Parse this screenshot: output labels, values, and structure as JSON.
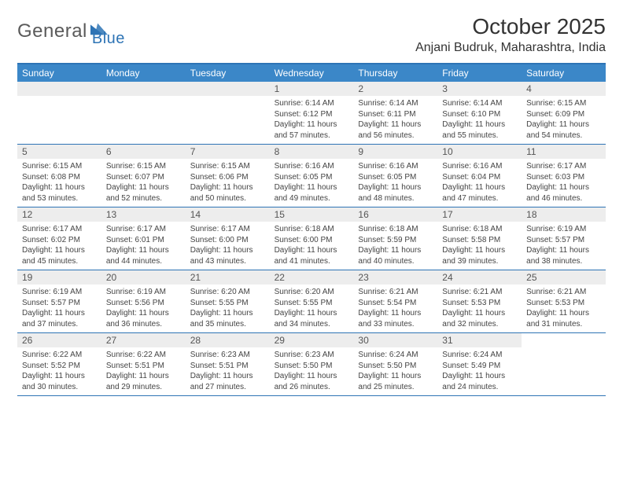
{
  "logo": {
    "part1": "General",
    "part2": "Blue"
  },
  "title": "October 2025",
  "location": "Anjani Budruk, Maharashtra, India",
  "colors": {
    "header_bg": "#3b87c8",
    "header_rule": "#2e74b5",
    "daynum_bg": "#ededed",
    "text": "#333333",
    "logo_gray": "#5a5a5a",
    "logo_blue": "#2e74b5"
  },
  "days_of_week": [
    "Sunday",
    "Monday",
    "Tuesday",
    "Wednesday",
    "Thursday",
    "Friday",
    "Saturday"
  ],
  "weeks": [
    [
      {
        "n": "",
        "sr": "",
        "ss": "",
        "dl1": "",
        "dl2": "",
        "blank": true
      },
      {
        "n": "",
        "sr": "",
        "ss": "",
        "dl1": "",
        "dl2": "",
        "blank": true
      },
      {
        "n": "",
        "sr": "",
        "ss": "",
        "dl1": "",
        "dl2": "",
        "blank": true
      },
      {
        "n": "1",
        "sr": "Sunrise: 6:14 AM",
        "ss": "Sunset: 6:12 PM",
        "dl1": "Daylight: 11 hours",
        "dl2": "and 57 minutes."
      },
      {
        "n": "2",
        "sr": "Sunrise: 6:14 AM",
        "ss": "Sunset: 6:11 PM",
        "dl1": "Daylight: 11 hours",
        "dl2": "and 56 minutes."
      },
      {
        "n": "3",
        "sr": "Sunrise: 6:14 AM",
        "ss": "Sunset: 6:10 PM",
        "dl1": "Daylight: 11 hours",
        "dl2": "and 55 minutes."
      },
      {
        "n": "4",
        "sr": "Sunrise: 6:15 AM",
        "ss": "Sunset: 6:09 PM",
        "dl1": "Daylight: 11 hours",
        "dl2": "and 54 minutes."
      }
    ],
    [
      {
        "n": "5",
        "sr": "Sunrise: 6:15 AM",
        "ss": "Sunset: 6:08 PM",
        "dl1": "Daylight: 11 hours",
        "dl2": "and 53 minutes."
      },
      {
        "n": "6",
        "sr": "Sunrise: 6:15 AM",
        "ss": "Sunset: 6:07 PM",
        "dl1": "Daylight: 11 hours",
        "dl2": "and 52 minutes."
      },
      {
        "n": "7",
        "sr": "Sunrise: 6:15 AM",
        "ss": "Sunset: 6:06 PM",
        "dl1": "Daylight: 11 hours",
        "dl2": "and 50 minutes."
      },
      {
        "n": "8",
        "sr": "Sunrise: 6:16 AM",
        "ss": "Sunset: 6:05 PM",
        "dl1": "Daylight: 11 hours",
        "dl2": "and 49 minutes."
      },
      {
        "n": "9",
        "sr": "Sunrise: 6:16 AM",
        "ss": "Sunset: 6:05 PM",
        "dl1": "Daylight: 11 hours",
        "dl2": "and 48 minutes."
      },
      {
        "n": "10",
        "sr": "Sunrise: 6:16 AM",
        "ss": "Sunset: 6:04 PM",
        "dl1": "Daylight: 11 hours",
        "dl2": "and 47 minutes."
      },
      {
        "n": "11",
        "sr": "Sunrise: 6:17 AM",
        "ss": "Sunset: 6:03 PM",
        "dl1": "Daylight: 11 hours",
        "dl2": "and 46 minutes."
      }
    ],
    [
      {
        "n": "12",
        "sr": "Sunrise: 6:17 AM",
        "ss": "Sunset: 6:02 PM",
        "dl1": "Daylight: 11 hours",
        "dl2": "and 45 minutes."
      },
      {
        "n": "13",
        "sr": "Sunrise: 6:17 AM",
        "ss": "Sunset: 6:01 PM",
        "dl1": "Daylight: 11 hours",
        "dl2": "and 44 minutes."
      },
      {
        "n": "14",
        "sr": "Sunrise: 6:17 AM",
        "ss": "Sunset: 6:00 PM",
        "dl1": "Daylight: 11 hours",
        "dl2": "and 43 minutes."
      },
      {
        "n": "15",
        "sr": "Sunrise: 6:18 AM",
        "ss": "Sunset: 6:00 PM",
        "dl1": "Daylight: 11 hours",
        "dl2": "and 41 minutes."
      },
      {
        "n": "16",
        "sr": "Sunrise: 6:18 AM",
        "ss": "Sunset: 5:59 PM",
        "dl1": "Daylight: 11 hours",
        "dl2": "and 40 minutes."
      },
      {
        "n": "17",
        "sr": "Sunrise: 6:18 AM",
        "ss": "Sunset: 5:58 PM",
        "dl1": "Daylight: 11 hours",
        "dl2": "and 39 minutes."
      },
      {
        "n": "18",
        "sr": "Sunrise: 6:19 AM",
        "ss": "Sunset: 5:57 PM",
        "dl1": "Daylight: 11 hours",
        "dl2": "and 38 minutes."
      }
    ],
    [
      {
        "n": "19",
        "sr": "Sunrise: 6:19 AM",
        "ss": "Sunset: 5:57 PM",
        "dl1": "Daylight: 11 hours",
        "dl2": "and 37 minutes."
      },
      {
        "n": "20",
        "sr": "Sunrise: 6:19 AM",
        "ss": "Sunset: 5:56 PM",
        "dl1": "Daylight: 11 hours",
        "dl2": "and 36 minutes."
      },
      {
        "n": "21",
        "sr": "Sunrise: 6:20 AM",
        "ss": "Sunset: 5:55 PM",
        "dl1": "Daylight: 11 hours",
        "dl2": "and 35 minutes."
      },
      {
        "n": "22",
        "sr": "Sunrise: 6:20 AM",
        "ss": "Sunset: 5:55 PM",
        "dl1": "Daylight: 11 hours",
        "dl2": "and 34 minutes."
      },
      {
        "n": "23",
        "sr": "Sunrise: 6:21 AM",
        "ss": "Sunset: 5:54 PM",
        "dl1": "Daylight: 11 hours",
        "dl2": "and 33 minutes."
      },
      {
        "n": "24",
        "sr": "Sunrise: 6:21 AM",
        "ss": "Sunset: 5:53 PM",
        "dl1": "Daylight: 11 hours",
        "dl2": "and 32 minutes."
      },
      {
        "n": "25",
        "sr": "Sunrise: 6:21 AM",
        "ss": "Sunset: 5:53 PM",
        "dl1": "Daylight: 11 hours",
        "dl2": "and 31 minutes."
      }
    ],
    [
      {
        "n": "26",
        "sr": "Sunrise: 6:22 AM",
        "ss": "Sunset: 5:52 PM",
        "dl1": "Daylight: 11 hours",
        "dl2": "and 30 minutes."
      },
      {
        "n": "27",
        "sr": "Sunrise: 6:22 AM",
        "ss": "Sunset: 5:51 PM",
        "dl1": "Daylight: 11 hours",
        "dl2": "and 29 minutes."
      },
      {
        "n": "28",
        "sr": "Sunrise: 6:23 AM",
        "ss": "Sunset: 5:51 PM",
        "dl1": "Daylight: 11 hours",
        "dl2": "and 27 minutes."
      },
      {
        "n": "29",
        "sr": "Sunrise: 6:23 AM",
        "ss": "Sunset: 5:50 PM",
        "dl1": "Daylight: 11 hours",
        "dl2": "and 26 minutes."
      },
      {
        "n": "30",
        "sr": "Sunrise: 6:24 AM",
        "ss": "Sunset: 5:50 PM",
        "dl1": "Daylight: 11 hours",
        "dl2": "and 25 minutes."
      },
      {
        "n": "31",
        "sr": "Sunrise: 6:24 AM",
        "ss": "Sunset: 5:49 PM",
        "dl1": "Daylight: 11 hours",
        "dl2": "and 24 minutes."
      },
      {
        "n": "",
        "sr": "",
        "ss": "",
        "dl1": "",
        "dl2": "",
        "blank": true
      }
    ]
  ]
}
